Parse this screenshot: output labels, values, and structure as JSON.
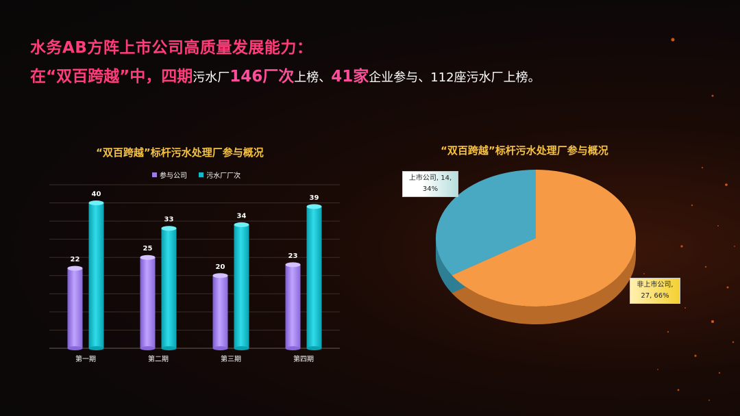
{
  "headline": {
    "line1": "水务AB方阵上市公司高质量发展能力：",
    "line2": [
      {
        "text": "在“双百跨越”中，四期",
        "style": "emph"
      },
      {
        "text": "污水厂",
        "style": "plain"
      },
      {
        "text": "146厂次",
        "style": "hot"
      },
      {
        "text": "上榜、",
        "style": "plain"
      },
      {
        "text": "41家",
        "style": "hot"
      },
      {
        "text": "企业参与、112座污水厂上榜。",
        "style": "plain"
      }
    ]
  },
  "colors": {
    "series_participation": "#9f7be6",
    "series_plants": "#14b8c8",
    "pie_listed": "#4aa9c2",
    "pie_unlisted": "#f79a45",
    "title_gold": "#f5c242",
    "headline_pink": "#ff3d7a"
  },
  "chart_data": [
    {
      "type": "bar",
      "title": "“双百跨越”标杆污水处理厂参与概况",
      "categories": [
        "第一期",
        "第二期",
        "第三期",
        "第四期"
      ],
      "series": [
        {
          "name": "参与公司",
          "values": [
            22,
            25,
            20,
            23
          ]
        },
        {
          "name": "污水厂厂次",
          "values": [
            40,
            33,
            34,
            39
          ]
        }
      ],
      "ylim": [
        0,
        45
      ],
      "grid": true,
      "legend": "top"
    },
    {
      "type": "pie",
      "title": "“双百跨越”标杆污水处理厂参与概况",
      "slices": [
        {
          "label": "上市公司",
          "value": 14,
          "percent": "34%",
          "display_line1": "上市公司, 14,",
          "display_line2": "34%"
        },
        {
          "label": "非上市公司",
          "value": 27,
          "percent": "66%",
          "display_line1": "非上市公司,",
          "display_line2": "27, 66%"
        }
      ]
    }
  ]
}
